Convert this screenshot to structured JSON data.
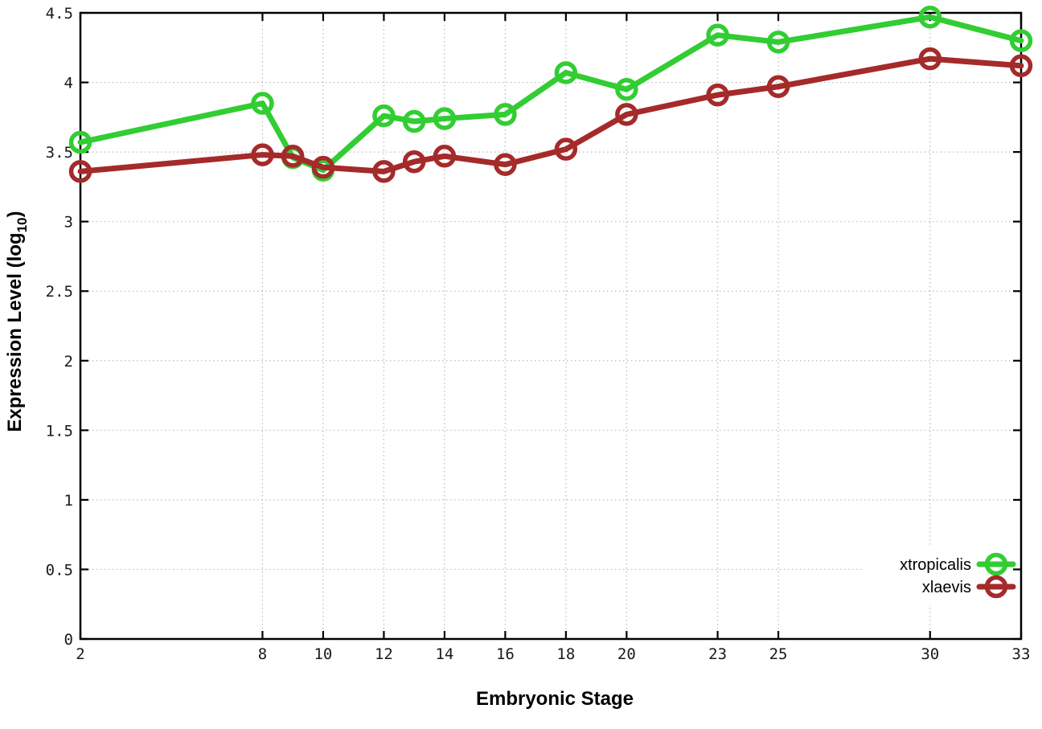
{
  "chart_data": {
    "type": "line",
    "xlabel": "Embryonic Stage",
    "ylabel": "Expression Level (log10)",
    "ylabel_parts": {
      "main": "Expression Level (log",
      "sub": "10",
      "end": ")"
    },
    "x": [
      2,
      8,
      9,
      10,
      12,
      13,
      14,
      16,
      18,
      20,
      23,
      25,
      30,
      33
    ],
    "series": [
      {
        "name": "xtropicalis",
        "color": "#32cd32",
        "values": [
          3.57,
          3.85,
          3.46,
          3.37,
          3.76,
          3.72,
          3.74,
          3.77,
          4.07,
          3.95,
          4.34,
          4.29,
          4.47,
          4.3
        ]
      },
      {
        "name": "xlaevis",
        "color": "#a52a2a",
        "values": [
          3.36,
          3.48,
          3.47,
          3.39,
          3.36,
          3.43,
          3.47,
          3.41,
          3.52,
          3.77,
          3.91,
          3.97,
          4.17,
          4.12
        ]
      }
    ],
    "xticks": [
      2,
      8,
      10,
      12,
      14,
      16,
      18,
      20,
      23,
      25,
      30,
      33
    ],
    "yticks": [
      0,
      0.5,
      1,
      1.5,
      2,
      2.5,
      3,
      3.5,
      4,
      4.5
    ],
    "xlim": [
      2,
      33
    ],
    "ylim": [
      0,
      4.5
    ],
    "grid": true,
    "legend_position": "bottom-right",
    "colors": {
      "border": "#000000",
      "grid": "#b9b9b9",
      "background": "#ffffff"
    }
  }
}
